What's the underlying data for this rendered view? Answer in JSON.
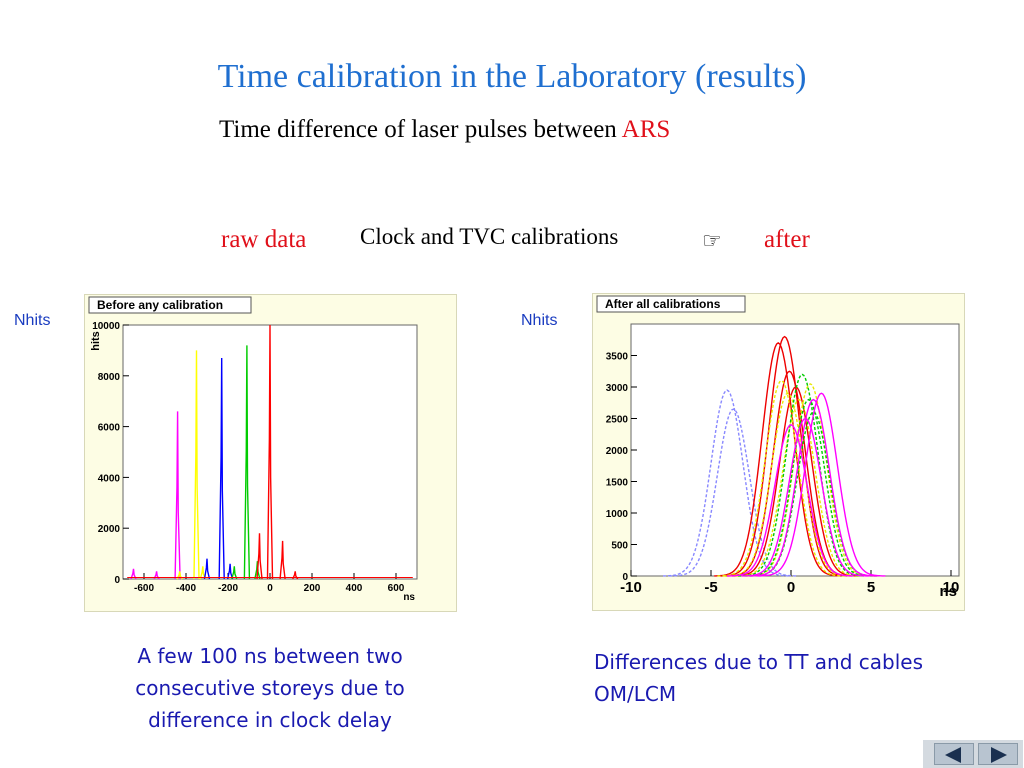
{
  "slide": {
    "title": "Time calibration in the Laboratory (results)",
    "subtitle_prefix": "Time difference of laser pulses between ",
    "subtitle_highlight": "ARS",
    "raw_label": "raw data",
    "clock_label": "Clock and TVC calibrations",
    "hand_glyph": "☞",
    "after_label": "after",
    "left_ylabel": "Nhits",
    "right_ylabel": "Nhits",
    "left_caption": "A few 100 ns between two consecutive storeys due to difference in clock delay",
    "right_caption": "Differences due to TT and cables OM/LCM"
  },
  "nav": {
    "prev_icon": "triangle-left-icon",
    "next_icon": "triangle-right-icon"
  },
  "colors": {
    "title": "#1f6fd0",
    "highlight": "#e0101a",
    "caption": "#1a1ab0",
    "panel_bg": "#fdfde4"
  },
  "chart_data": [
    {
      "type": "line",
      "title": "Before any calibration",
      "xlabel": "ns",
      "ylabel": "hits",
      "xlim": [
        -700,
        700
      ],
      "ylim": [
        0,
        10000
      ],
      "xticks": [
        -600,
        -400,
        -200,
        0,
        200,
        400,
        600
      ],
      "yticks": [
        0,
        2000,
        4000,
        6000,
        8000,
        10000
      ],
      "peak_width": 6,
      "series": [
        {
          "color": "#ff00ff",
          "peaks": [
            [
              -440,
              6600
            ],
            [
              -650,
              400
            ],
            [
              -540,
              300
            ]
          ]
        },
        {
          "color": "#ffff00",
          "peaks": [
            [
              -350,
              9000
            ],
            [
              -320,
              500
            ],
            [
              -430,
              300
            ]
          ]
        },
        {
          "color": "#0000ff",
          "peaks": [
            [
              -230,
              8700
            ],
            [
              -300,
              800
            ],
            [
              -190,
              600
            ]
          ]
        },
        {
          "color": "#00cc00",
          "peaks": [
            [
              -110,
              9200
            ],
            [
              -170,
              500
            ],
            [
              -60,
              700
            ]
          ]
        },
        {
          "color": "#ff0000",
          "peaks": [
            [
              0,
              10000
            ],
            [
              -50,
              1800
            ],
            [
              60,
              1500
            ],
            [
              120,
              300
            ]
          ]
        }
      ]
    },
    {
      "type": "line",
      "title": "After all calibrations",
      "xlabel": "ns",
      "xlim": [
        -10,
        10.5
      ],
      "ylim": [
        0,
        4000
      ],
      "xticks": [
        -10,
        -5,
        0,
        5,
        10
      ],
      "yticks": [
        0,
        500,
        1000,
        1500,
        2000,
        2500,
        3000,
        3500
      ],
      "sigma": 1.0,
      "series": [
        {
          "color": "#8888ff",
          "dashed": true,
          "curves": [
            [
              -4.0,
              2950
            ],
            [
              -3.6,
              2650
            ]
          ]
        },
        {
          "color": "#ee0000",
          "dashed": false,
          "curves": [
            [
              -0.8,
              3700
            ],
            [
              -0.4,
              3800
            ],
            [
              -0.1,
              3250
            ],
            [
              0.3,
              3000
            ]
          ]
        },
        {
          "color": "#e8e800",
          "dashed": true,
          "curves": [
            [
              -0.6,
              3100
            ],
            [
              -0.2,
              2900
            ],
            [
              0.5,
              2800
            ],
            [
              1.2,
              3050
            ]
          ]
        },
        {
          "color": "#00cc00",
          "dashed": true,
          "curves": [
            [
              0.7,
              3200
            ],
            [
              1.1,
              2800
            ],
            [
              1.4,
              2600
            ]
          ]
        },
        {
          "color": "#ff00ff",
          "dashed": false,
          "curves": [
            [
              1.4,
              2800
            ],
            [
              1.9,
              2900
            ],
            [
              0.9,
              2500
            ],
            [
              0.0,
              2400
            ]
          ]
        }
      ]
    }
  ]
}
